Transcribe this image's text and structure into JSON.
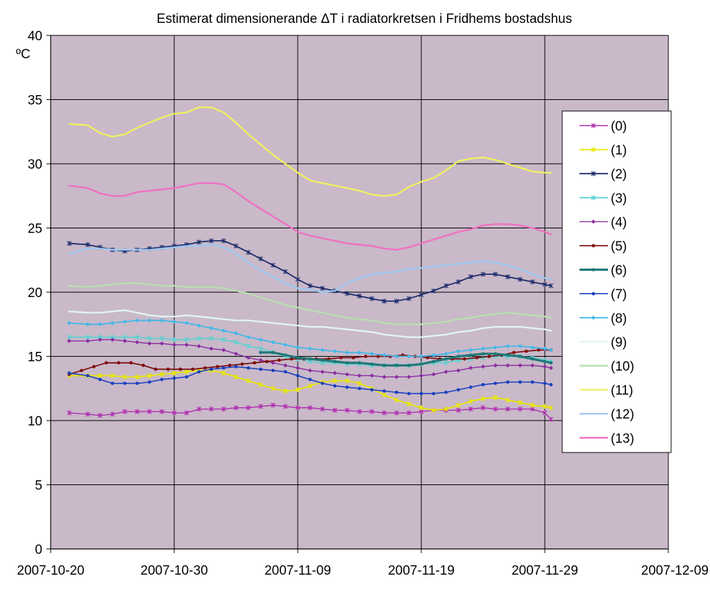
{
  "chart_data": {
    "type": "line",
    "title": "Estimerat dimensionerande ΔT i radiatorkretsen i Fridhems bostadshus",
    "ylabel": "ºC",
    "xlabel": "",
    "ylim": [
      0,
      40
    ],
    "yticks": [
      "0",
      "5",
      "10",
      "15",
      "20",
      "25",
      "30",
      "35",
      "40"
    ],
    "xlim": [
      0,
      50
    ],
    "xticks": [
      {
        "x": 0,
        "label": "2007-10-20"
      },
      {
        "x": 10,
        "label": "2007-10-30"
      },
      {
        "x": 20,
        "label": "2007-11-09"
      },
      {
        "x": 30,
        "label": "2007-11-19"
      },
      {
        "x": 40,
        "label": "2007-11-29"
      },
      {
        "x": 50,
        "label": "2007-12-09"
      }
    ],
    "grid": true,
    "legend_position": "right",
    "background": "#c9b9c9",
    "series": [
      {
        "name": "(0)",
        "color": "#b02ab0",
        "marker": "star",
        "width": 1.4,
        "x": [
          1.5,
          3,
          4,
          5,
          6,
          7,
          8,
          9,
          10,
          11,
          12,
          13,
          14,
          15,
          16,
          17,
          18,
          19,
          20,
          21,
          22,
          23,
          24,
          25,
          26,
          27,
          28,
          29,
          30,
          31,
          32,
          33,
          34,
          35,
          36,
          37,
          38,
          39,
          40,
          40.5
        ],
        "y": [
          10.6,
          10.5,
          10.4,
          10.5,
          10.7,
          10.7,
          10.7,
          10.7,
          10.6,
          10.6,
          10.9,
          10.9,
          10.9,
          11.0,
          11.0,
          11.1,
          11.2,
          11.1,
          11.0,
          11.0,
          10.9,
          10.8,
          10.8,
          10.7,
          10.7,
          10.6,
          10.6,
          10.6,
          10.7,
          10.8,
          10.8,
          10.8,
          10.9,
          11.0,
          10.9,
          10.9,
          10.9,
          10.9,
          10.6,
          10.1
        ]
      },
      {
        "name": "(1)",
        "color": "#e8e800",
        "marker": "star",
        "width": 1.8,
        "x": [
          1.5,
          3,
          4,
          5,
          6,
          7,
          8,
          9,
          10,
          11,
          12,
          13,
          14,
          15,
          16,
          17,
          18,
          19,
          20,
          21,
          22,
          23,
          24,
          25,
          26,
          27,
          28,
          29,
          30,
          31,
          32,
          33,
          34,
          35,
          36,
          37,
          38,
          39,
          40,
          40.5
        ],
        "y": [
          13.5,
          13.5,
          13.5,
          13.5,
          13.4,
          13.4,
          13.5,
          13.6,
          13.7,
          13.8,
          13.9,
          13.9,
          13.7,
          13.4,
          13.1,
          12.8,
          12.5,
          12.3,
          12.4,
          12.7,
          13.0,
          13.1,
          13.1,
          12.9,
          12.5,
          12.0,
          11.6,
          11.3,
          11.0,
          10.8,
          10.9,
          11.2,
          11.5,
          11.7,
          11.8,
          11.6,
          11.4,
          11.2,
          11.1,
          11.0
        ]
      },
      {
        "name": "(2)",
        "color": "#1a2a6a",
        "marker": "star",
        "width": 1.8,
        "x": [
          1.5,
          3,
          4,
          5,
          6,
          7,
          8,
          9,
          10,
          11,
          12,
          13,
          14,
          15,
          16,
          17,
          18,
          19,
          20,
          21,
          22,
          23,
          24,
          25,
          26,
          27,
          28,
          29,
          30,
          31,
          32,
          33,
          34,
          35,
          36,
          37,
          38,
          39,
          40,
          40.5
        ],
        "y": [
          23.8,
          23.7,
          23.5,
          23.3,
          23.2,
          23.3,
          23.4,
          23.5,
          23.6,
          23.7,
          23.9,
          24.0,
          24.0,
          23.6,
          23.1,
          22.6,
          22.1,
          21.6,
          21.0,
          20.5,
          20.3,
          20.1,
          19.9,
          19.7,
          19.5,
          19.3,
          19.3,
          19.5,
          19.8,
          20.1,
          20.5,
          20.8,
          21.2,
          21.4,
          21.4,
          21.2,
          21.0,
          20.8,
          20.6,
          20.5
        ]
      },
      {
        "name": "(3)",
        "color": "#60d0d0",
        "marker": "star",
        "width": 1.8,
        "x": [
          1.5,
          3,
          4,
          5,
          6,
          7,
          8,
          9,
          10,
          11,
          12,
          13,
          14,
          15,
          16,
          17,
          18,
          19,
          20,
          21,
          22,
          23,
          24,
          25,
          26,
          27,
          28,
          29,
          30,
          31,
          32,
          33,
          34,
          35,
          36,
          37,
          38,
          39,
          40,
          40.5
        ],
        "y": [
          16.5,
          16.5,
          16.5,
          16.5,
          16.5,
          16.5,
          16.4,
          16.4,
          16.3,
          16.3,
          16.4,
          16.4,
          16.3,
          16.1,
          15.8,
          15.6,
          15.3,
          15.0,
          14.8,
          14.6,
          14.5,
          14.5,
          14.4,
          14.4,
          14.3,
          14.3,
          14.3,
          14.3,
          14.4,
          14.5,
          14.5,
          14.7,
          14.8,
          14.9,
          15.0,
          15.0,
          15.0,
          14.9,
          14.7,
          14.6
        ]
      },
      {
        "name": "(4)",
        "color": "#8a2aa0",
        "marker": "diamond",
        "width": 1.4,
        "x": [
          1.5,
          3,
          4,
          5,
          6,
          7,
          8,
          9,
          10,
          11,
          12,
          13,
          14,
          15,
          16,
          17,
          18,
          19,
          20,
          21,
          22,
          23,
          24,
          25,
          26,
          27,
          28,
          29,
          30,
          31,
          32,
          33,
          34,
          35,
          36,
          37,
          38,
          39,
          40,
          40.5
        ],
        "y": [
          16.2,
          16.2,
          16.3,
          16.3,
          16.2,
          16.1,
          16.0,
          16.0,
          15.9,
          15.9,
          15.8,
          15.6,
          15.5,
          15.2,
          14.9,
          14.7,
          14.5,
          14.3,
          14.1,
          13.9,
          13.8,
          13.7,
          13.6,
          13.5,
          13.5,
          13.4,
          13.4,
          13.4,
          13.5,
          13.6,
          13.8,
          13.9,
          14.1,
          14.2,
          14.3,
          14.3,
          14.3,
          14.3,
          14.2,
          14.1
        ]
      },
      {
        "name": "(5)",
        "color": "#801010",
        "marker": "circle",
        "width": 1.8,
        "x": [
          1.5,
          2.5,
          3.5,
          4.5,
          5.5,
          6.5,
          7.5,
          8.5,
          9.5,
          10.5,
          11.5,
          12.5,
          13.5,
          14.5,
          15.5,
          16.5,
          17.5,
          18.5,
          19.5,
          20.5,
          21.5,
          22.5,
          23.5,
          24.5,
          25.5,
          26.5,
          27.5,
          28.5,
          29.5,
          30.5,
          31.5,
          32.5,
          33.5,
          34.5,
          35.5,
          36.5,
          37.5,
          38.5,
          39.5,
          40.5
        ],
        "y": [
          13.6,
          13.9,
          14.2,
          14.5,
          14.5,
          14.5,
          14.3,
          14.0,
          14.0,
          14.0,
          14.0,
          14.1,
          14.2,
          14.3,
          14.4,
          14.5,
          14.6,
          14.7,
          14.8,
          14.8,
          14.8,
          14.8,
          14.9,
          14.9,
          15.0,
          15.0,
          15.0,
          15.1,
          15.0,
          14.9,
          14.8,
          14.8,
          14.8,
          14.9,
          15.0,
          15.1,
          15.3,
          15.4,
          15.5,
          15.5
        ]
      },
      {
        "name": "(6)",
        "color": "#207878",
        "marker": "circle",
        "width": 3.2,
        "x": [
          17,
          18,
          19,
          20,
          21,
          22,
          23,
          24,
          25,
          26,
          27,
          28,
          29,
          30,
          31,
          32,
          33,
          34,
          35,
          36,
          37,
          38,
          39,
          40,
          40.5
        ],
        "y": [
          15.3,
          15.3,
          15.1,
          14.9,
          14.8,
          14.7,
          14.6,
          14.5,
          14.5,
          14.4,
          14.3,
          14.3,
          14.3,
          14.4,
          14.6,
          14.8,
          15.0,
          15.1,
          15.2,
          15.2,
          15.1,
          15.0,
          14.8,
          14.6,
          14.5
        ]
      },
      {
        "name": "(7)",
        "color": "#1a40c0",
        "marker": "circle",
        "width": 1.6,
        "x": [
          1.5,
          3,
          4,
          5,
          6,
          7,
          8,
          9,
          10,
          11,
          12,
          13,
          14,
          15,
          16,
          17,
          18,
          19,
          20,
          21,
          22,
          23,
          24,
          25,
          26,
          27,
          28,
          29,
          30,
          31,
          32,
          33,
          34,
          35,
          36,
          37,
          38,
          39,
          40,
          40.5
        ],
        "y": [
          13.7,
          13.5,
          13.2,
          12.9,
          12.9,
          12.9,
          13.0,
          13.2,
          13.3,
          13.4,
          13.8,
          14.0,
          14.1,
          14.2,
          14.1,
          14.0,
          13.9,
          13.8,
          13.5,
          13.2,
          12.9,
          12.7,
          12.6,
          12.5,
          12.4,
          12.3,
          12.2,
          12.1,
          12.1,
          12.1,
          12.2,
          12.4,
          12.6,
          12.8,
          12.9,
          13.0,
          13.0,
          13.0,
          12.9,
          12.8
        ]
      },
      {
        "name": "(8)",
        "color": "#40b8e8",
        "marker": "diamond",
        "width": 1.8,
        "x": [
          1.5,
          3,
          4,
          5,
          6,
          7,
          8,
          9,
          10,
          11,
          12,
          13,
          14,
          15,
          16,
          17,
          18,
          19,
          20,
          21,
          22,
          23,
          24,
          25,
          26,
          27,
          28,
          29,
          30,
          31,
          32,
          33,
          34,
          35,
          36,
          37,
          38,
          39,
          40,
          40.5
        ],
        "y": [
          17.6,
          17.5,
          17.5,
          17.6,
          17.7,
          17.8,
          17.8,
          17.8,
          17.7,
          17.6,
          17.4,
          17.2,
          17.0,
          16.8,
          16.5,
          16.3,
          16.1,
          15.9,
          15.7,
          15.6,
          15.5,
          15.4,
          15.3,
          15.3,
          15.2,
          15.1,
          15.0,
          15.0,
          15.0,
          15.1,
          15.2,
          15.4,
          15.5,
          15.6,
          15.7,
          15.8,
          15.8,
          15.7,
          15.6,
          15.5
        ]
      },
      {
        "name": "(9)",
        "color": "#e0f4f4",
        "marker": "none",
        "width": 2.4,
        "x": [
          1.5,
          3,
          4,
          5,
          6,
          7,
          8,
          9,
          10,
          11,
          12,
          13,
          14,
          15,
          16,
          17,
          18,
          19,
          20,
          21,
          22,
          23,
          24,
          25,
          26,
          27,
          28,
          29,
          30,
          31,
          32,
          33,
          34,
          35,
          36,
          37,
          38,
          39,
          40,
          40.5
        ],
        "y": [
          18.5,
          18.4,
          18.4,
          18.5,
          18.6,
          18.4,
          18.2,
          18.1,
          18.1,
          18.2,
          18.1,
          18.0,
          17.9,
          17.8,
          17.8,
          17.7,
          17.6,
          17.5,
          17.4,
          17.3,
          17.3,
          17.2,
          17.1,
          17.0,
          16.9,
          16.7,
          16.6,
          16.5,
          16.5,
          16.6,
          16.7,
          16.9,
          17.0,
          17.2,
          17.3,
          17.3,
          17.3,
          17.2,
          17.1,
          17.0
        ]
      },
      {
        "name": "(10)",
        "color": "#b8e0b0",
        "marker": "none",
        "width": 2.4,
        "x": [
          1.5,
          3,
          4,
          5,
          6,
          7,
          8,
          9,
          10,
          11,
          12,
          13,
          14,
          15,
          16,
          17,
          18,
          19,
          20,
          21,
          22,
          23,
          24,
          25,
          26,
          27,
          28,
          29,
          30,
          31,
          32,
          33,
          34,
          35,
          36,
          37,
          38,
          39,
          40,
          40.5
        ],
        "y": [
          20.5,
          20.4,
          20.5,
          20.6,
          20.7,
          20.7,
          20.6,
          20.5,
          20.5,
          20.4,
          20.4,
          20.4,
          20.3,
          20.1,
          19.9,
          19.6,
          19.3,
          19.0,
          18.8,
          18.6,
          18.4,
          18.2,
          18.0,
          17.9,
          17.8,
          17.6,
          17.5,
          17.5,
          17.5,
          17.6,
          17.7,
          17.9,
          18.0,
          18.2,
          18.3,
          18.4,
          18.3,
          18.2,
          18.1,
          18.0
        ]
      },
      {
        "name": "(11)",
        "color": "#f0f060",
        "marker": "none",
        "width": 2.4,
        "x": [
          1.5,
          3,
          4,
          5,
          6,
          7,
          8,
          9,
          10,
          11,
          12,
          13,
          14,
          15,
          16,
          17,
          18,
          19,
          20,
          21,
          22,
          23,
          24,
          25,
          26,
          27,
          28,
          29,
          30,
          31,
          32,
          33,
          34,
          35,
          36,
          37,
          38,
          39,
          40,
          40.5
        ],
        "y": [
          33.1,
          33.0,
          32.4,
          32.1,
          32.3,
          32.8,
          33.2,
          33.6,
          33.9,
          34.0,
          34.4,
          34.4,
          34.0,
          33.2,
          32.3,
          31.5,
          30.7,
          30.0,
          29.3,
          28.7,
          28.5,
          28.3,
          28.1,
          27.9,
          27.6,
          27.5,
          27.6,
          28.2,
          28.6,
          28.9,
          29.5,
          30.2,
          30.4,
          30.5,
          30.3,
          30.0,
          29.7,
          29.4,
          29.3,
          29.3
        ]
      },
      {
        "name": "(12)",
        "color": "#9ec8f0",
        "marker": "none",
        "width": 2.4,
        "x": [
          1.5,
          3,
          4,
          5,
          6,
          7,
          8,
          9,
          10,
          11,
          12,
          13,
          14,
          15,
          16,
          17,
          18,
          19,
          20,
          21,
          22,
          23,
          24,
          25,
          26,
          27,
          28,
          29,
          30,
          31,
          32,
          33,
          34,
          35,
          36,
          37,
          38,
          39,
          40,
          40.5
        ],
        "y": [
          23.0,
          23.4,
          23.4,
          23.3,
          23.3,
          23.3,
          23.3,
          23.4,
          23.5,
          23.6,
          23.6,
          23.7,
          23.5,
          23.0,
          22.3,
          21.7,
          21.2,
          20.7,
          20.3,
          20.2,
          20.0,
          20.1,
          20.7,
          21.1,
          21.4,
          21.5,
          21.6,
          21.8,
          21.9,
          22.0,
          22.1,
          22.2,
          22.3,
          22.4,
          22.3,
          22.1,
          21.8,
          21.4,
          21.1,
          21.0
        ]
      },
      {
        "name": "(13)",
        "color": "#f070c0",
        "marker": "none",
        "width": 2.4,
        "x": [
          1.5,
          3,
          4,
          5,
          6,
          7,
          8,
          9,
          10,
          11,
          12,
          13,
          14,
          15,
          16,
          17,
          18,
          19,
          20,
          21,
          22,
          23,
          24,
          25,
          26,
          27,
          28,
          29,
          30,
          31,
          32,
          33,
          34,
          35,
          36,
          37,
          38,
          39,
          40,
          40.5
        ],
        "y": [
          28.3,
          28.1,
          27.7,
          27.5,
          27.5,
          27.8,
          27.9,
          28.0,
          28.1,
          28.3,
          28.5,
          28.5,
          28.4,
          27.8,
          27.1,
          26.5,
          25.9,
          25.3,
          24.7,
          24.4,
          24.2,
          24.0,
          23.8,
          23.7,
          23.6,
          23.4,
          23.3,
          23.5,
          23.8,
          24.1,
          24.4,
          24.7,
          24.9,
          25.2,
          25.3,
          25.3,
          25.2,
          25.0,
          24.7,
          24.5
        ]
      }
    ]
  }
}
